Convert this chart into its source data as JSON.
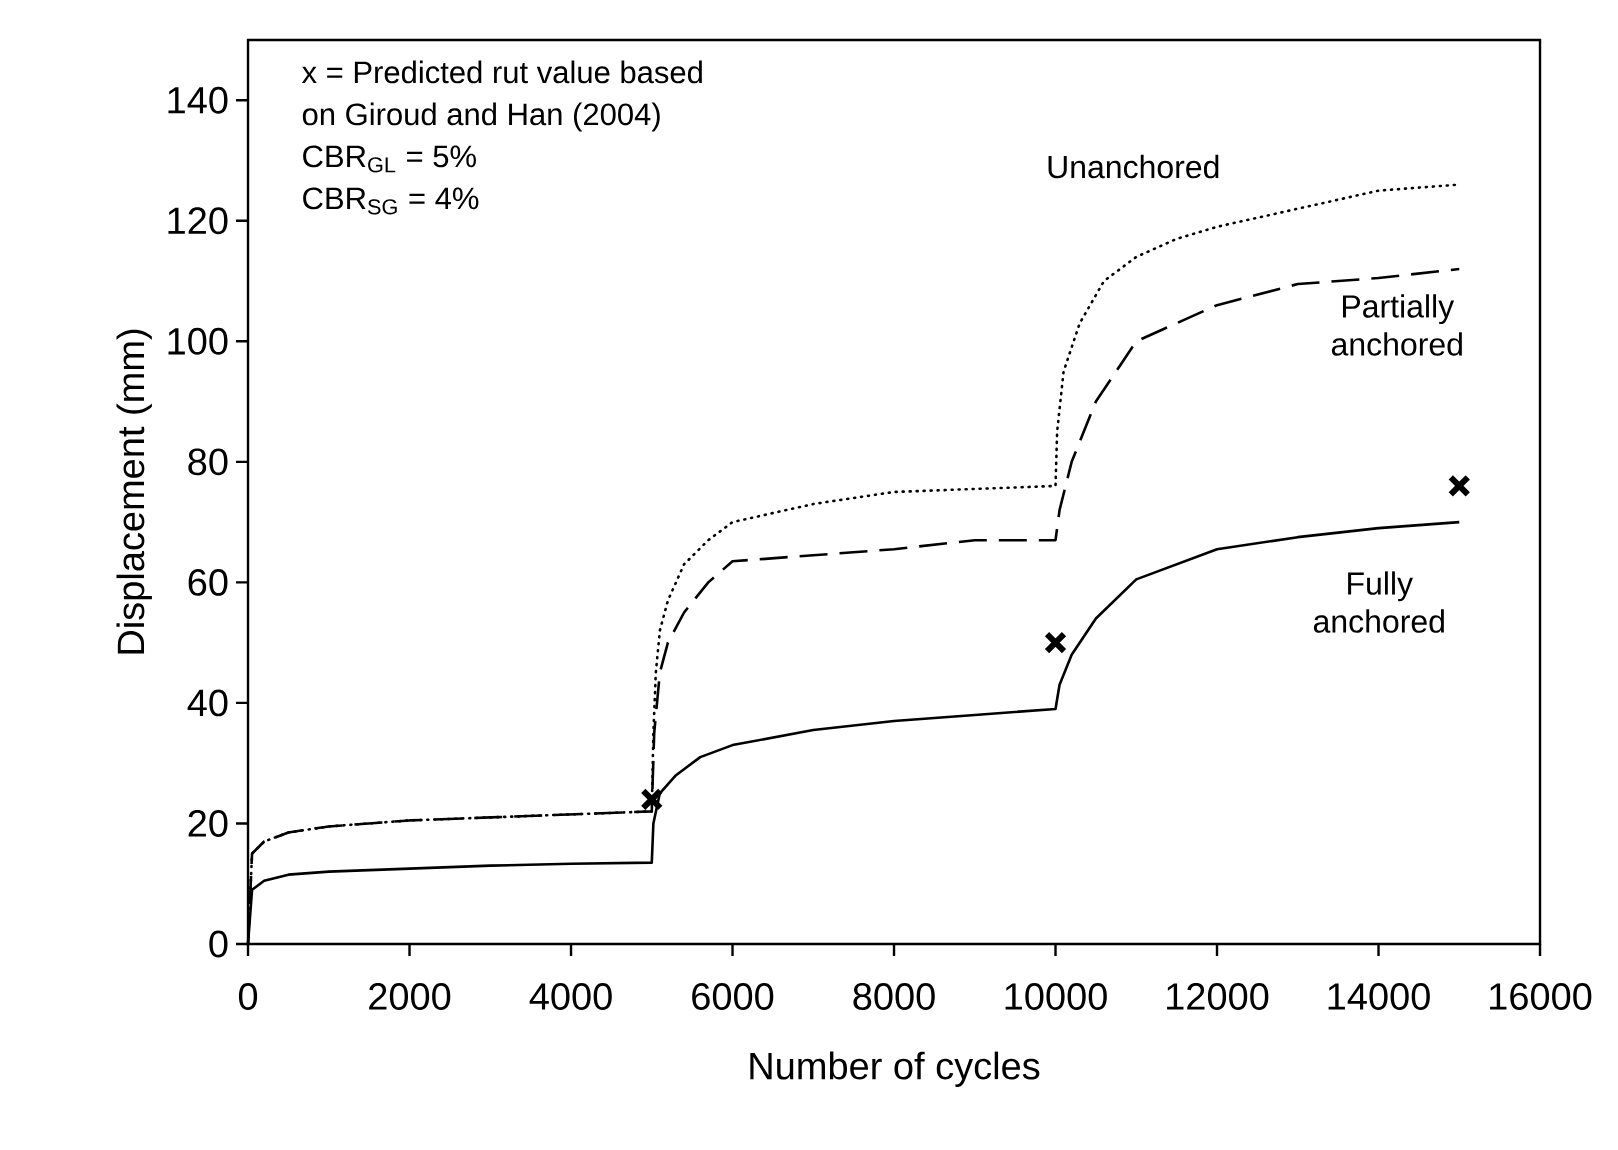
{
  "chart_data": {
    "type": "line",
    "xlabel": "Number of cycles",
    "ylabel": "Displacement (mm)",
    "xlim": [
      0,
      16000
    ],
    "ylim": [
      0,
      150
    ],
    "xticks": [
      0,
      2000,
      4000,
      6000,
      8000,
      10000,
      12000,
      14000,
      16000
    ],
    "yticks": [
      0,
      20,
      40,
      60,
      80,
      100,
      120,
      140
    ],
    "annotations": [
      "x = Predicted rut value based",
      "on Giroud and Han (2004)",
      "CBR$_{GL}$ = 5%",
      "CBR$_{SG}$ = 4%"
    ],
    "series": [
      {
        "name": "Unanchored",
        "color": "#000000",
        "line_style": "dotted",
        "x": [
          0,
          50,
          200,
          500,
          1000,
          2000,
          3000,
          4000,
          5000,
          5020,
          5050,
          5100,
          5200,
          5400,
          5700,
          6000,
          7000,
          8000,
          9000,
          10000,
          10020,
          10100,
          10300,
          10600,
          11000,
          11500,
          12000,
          13000,
          14000,
          15000
        ],
        "values": [
          0,
          15,
          17,
          18.5,
          19.5,
          20.5,
          21,
          21.5,
          22,
          35,
          45,
          52,
          57,
          63,
          67,
          70,
          73,
          75,
          75.5,
          76,
          85,
          95,
          103,
          110,
          114,
          117,
          119,
          122,
          125,
          126
        ]
      },
      {
        "name": "Partially anchored",
        "color": "#000000",
        "line_style": "dashed",
        "x": [
          0,
          50,
          200,
          500,
          1000,
          2000,
          3000,
          4000,
          5000,
          5030,
          5100,
          5200,
          5400,
          5700,
          6000,
          7000,
          8000,
          9000,
          10000,
          10050,
          10200,
          10500,
          10800,
          11000,
          12000,
          13000,
          14000,
          15000
        ],
        "values": [
          0,
          15,
          17,
          18.5,
          19.5,
          20.5,
          21,
          21.5,
          22,
          35,
          45,
          50,
          55,
          60,
          63.5,
          64.5,
          65.5,
          67,
          67,
          72,
          80,
          90,
          96,
          100,
          106,
          109.5,
          110.5,
          112
        ]
      },
      {
        "name": "Fully anchored",
        "color": "#000000",
        "line_style": "solid",
        "x": [
          0,
          50,
          200,
          500,
          1000,
          2000,
          3000,
          4000,
          5000,
          5020,
          5100,
          5300,
          5600,
          6000,
          7000,
          8000,
          9000,
          10000,
          10050,
          10200,
          10500,
          11000,
          12000,
          13000,
          14000,
          15000
        ],
        "values": [
          0,
          9,
          10.5,
          11.5,
          12,
          12.5,
          13,
          13.3,
          13.5,
          20,
          25,
          28,
          31,
          33,
          35.5,
          37,
          38,
          39,
          43,
          48,
          54,
          60.5,
          65.5,
          67.5,
          69,
          70
        ]
      },
      {
        "type": "scatter",
        "marker": "cross",
        "color": "#000000",
        "x": [
          5000,
          10000,
          15000
        ],
        "values": [
          24,
          50,
          76
        ]
      }
    ]
  }
}
